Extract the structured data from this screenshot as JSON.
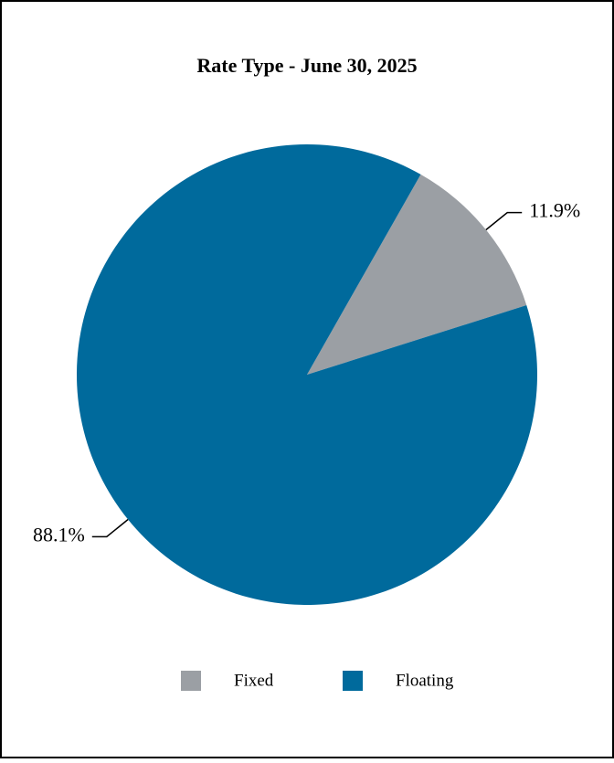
{
  "chart_data": {
    "type": "pie",
    "title": "Rate Type - June 30, 2025",
    "categories": [
      "Fixed",
      "Floating"
    ],
    "values": [
      11.9,
      88.1
    ],
    "value_labels": [
      "11.9%",
      "88.1%"
    ],
    "colors": [
      "#9b9fa4",
      "#006a9c"
    ]
  }
}
